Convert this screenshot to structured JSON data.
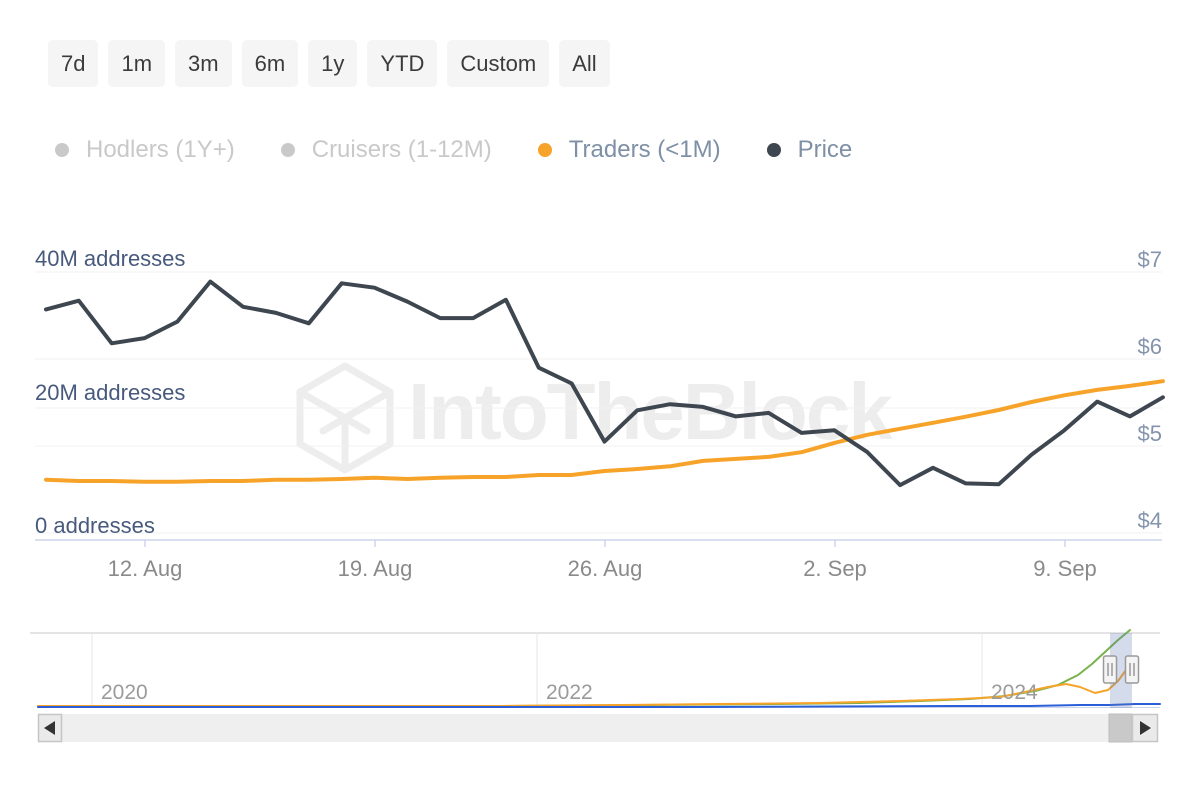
{
  "toolbar": {
    "ranges": [
      "7d",
      "1m",
      "3m",
      "6m",
      "1y",
      "YTD",
      "Custom",
      "All"
    ]
  },
  "legend": {
    "items": [
      {
        "label": "Hodlers (1Y+)",
        "color": "#c9c9c9",
        "text_color": "#c9c9c9",
        "enabled": false
      },
      {
        "label": "Cruisers (1-12M)",
        "color": "#c9c9c9",
        "text_color": "#c9c9c9",
        "enabled": false
      },
      {
        "label": "Traders (<1M)",
        "color": "#f7a329",
        "text_color": "#7e90a6",
        "enabled": true
      },
      {
        "label": "Price",
        "color": "#3e4650",
        "text_color": "#7e90a6",
        "enabled": true
      }
    ]
  },
  "axis": {
    "left_labels": [
      "40M addresses",
      "20M addresses",
      "0 addresses"
    ],
    "right_labels": [
      "$7",
      "$6",
      "$5",
      "$4"
    ],
    "x_labels": [
      "12. Aug",
      "19. Aug",
      "26. Aug",
      "2. Sep",
      "9. Sep"
    ]
  },
  "watermark": {
    "text": "IntoTheBlock"
  },
  "chart_data": {
    "type": "line",
    "x": [
      "Aug 9",
      "Aug 10",
      "Aug 11",
      "Aug 12",
      "Aug 13",
      "Aug 14",
      "Aug 15",
      "Aug 16",
      "Aug 17",
      "Aug 18",
      "Aug 19",
      "Aug 20",
      "Aug 21",
      "Aug 22",
      "Aug 23",
      "Aug 24",
      "Aug 25",
      "Aug 26",
      "Aug 27",
      "Aug 28",
      "Aug 29",
      "Aug 30",
      "Aug 31",
      "Sep 1",
      "Sep 2",
      "Sep 3",
      "Sep 4",
      "Sep 5",
      "Sep 6",
      "Sep 7",
      "Sep 8",
      "Sep 9",
      "Sep 10",
      "Sep 11",
      "Sep 12"
    ],
    "series": [
      {
        "name": "Hodlers (1Y+)",
        "visible": false,
        "unit": "M addresses",
        "values": []
      },
      {
        "name": "Cruisers (1-12M)",
        "visible": false,
        "unit": "M addresses",
        "values": []
      },
      {
        "name": "Traders (<1M)",
        "visible": true,
        "unit": "M addresses",
        "color": "#f7a329",
        "values": [
          9.0,
          8.8,
          8.8,
          8.7,
          8.7,
          8.8,
          8.8,
          9.0,
          9.0,
          9.1,
          9.3,
          9.1,
          9.3,
          9.4,
          9.4,
          9.7,
          9.7,
          10.3,
          10.6,
          11.0,
          11.8,
          12.1,
          12.4,
          13.1,
          14.5,
          15.7,
          16.6,
          17.5,
          18.4,
          19.4,
          20.6,
          21.6,
          22.4,
          23.0,
          23.7
        ]
      },
      {
        "name": "Price",
        "visible": true,
        "unit": "USD",
        "color": "#3e4650",
        "values": [
          6.57,
          6.67,
          6.18,
          6.24,
          6.43,
          6.89,
          6.6,
          6.53,
          6.41,
          6.87,
          6.82,
          6.66,
          6.47,
          6.47,
          6.68,
          5.9,
          5.72,
          5.05,
          5.41,
          5.48,
          5.45,
          5.34,
          5.38,
          5.15,
          5.18,
          4.93,
          4.55,
          4.75,
          4.57,
          4.56,
          4.9,
          5.18,
          5.51,
          5.34,
          5.56
        ]
      }
    ],
    "left_axis": {
      "label": "addresses",
      "ticks": [
        "0 addresses",
        "20M addresses",
        "40M addresses"
      ],
      "range": [
        0,
        40
      ]
    },
    "right_axis": {
      "label": "Price (USD)",
      "ticks": [
        "$4",
        "$5",
        "$6",
        "$7"
      ],
      "range": [
        4,
        7
      ]
    },
    "grid": true,
    "legend_position": "top"
  },
  "navigator": {
    "year_labels": [
      "2020",
      "2022",
      "2024"
    ],
    "selected_range": {
      "start": "Aug 9",
      "end": "Sep 12"
    },
    "series": [
      {
        "id": "hodlers",
        "color": "#77b24a",
        "points": [
          [
            38,
            706
          ],
          [
            500,
            706
          ],
          [
            650,
            705
          ],
          [
            780,
            704
          ],
          [
            860,
            703
          ],
          [
            920,
            701
          ],
          [
            970,
            699
          ],
          [
            1005,
            696
          ],
          [
            1035,
            691
          ],
          [
            1058,
            685
          ],
          [
            1078,
            675
          ],
          [
            1092,
            664
          ],
          [
            1105,
            652
          ],
          [
            1118,
            640
          ],
          [
            1130,
            630
          ]
        ]
      },
      {
        "id": "traders",
        "color": "#f7a329",
        "points": [
          [
            38,
            706
          ],
          [
            300,
            706
          ],
          [
            500,
            706
          ],
          [
            620,
            705
          ],
          [
            720,
            704
          ],
          [
            820,
            703
          ],
          [
            900,
            701
          ],
          [
            960,
            699
          ],
          [
            1000,
            697
          ],
          [
            1025,
            692
          ],
          [
            1048,
            687
          ],
          [
            1066,
            684
          ],
          [
            1080,
            687
          ],
          [
            1095,
            693
          ],
          [
            1108,
            690
          ],
          [
            1118,
            681
          ],
          [
            1126,
            670
          ],
          [
            1132,
            661
          ]
        ]
      },
      {
        "id": "price",
        "color": "#2b5fd9",
        "points": [
          [
            38,
            707
          ],
          [
            700,
            707
          ],
          [
            950,
            706
          ],
          [
            1030,
            706
          ],
          [
            1080,
            705
          ],
          [
            1110,
            705
          ],
          [
            1135,
            704
          ],
          [
            1160,
            704
          ]
        ]
      }
    ]
  },
  "colors": {
    "accent_orange": "#f7a329",
    "price_dark": "#3e4650",
    "nav_green": "#77b24a",
    "nav_blue": "#2b5fd9",
    "selection_band": "#cdd7ec",
    "axis_line": "#ccd6eb",
    "grid": "#f1f1f1",
    "left_label": "#475a7d",
    "right_label": "#8494ac",
    "date_label": "#8a8a8a",
    "disabled": "#c9c9c9",
    "legend_text": "#7e90a6",
    "watermark": "#ededed",
    "button_bg": "#f5f5f5",
    "button_text": "#3b3b3b",
    "scrollbar_track": "#efefef",
    "scrollbar_thumb": "#c9c9c9",
    "scrollbar_button": "#eaeaea"
  }
}
